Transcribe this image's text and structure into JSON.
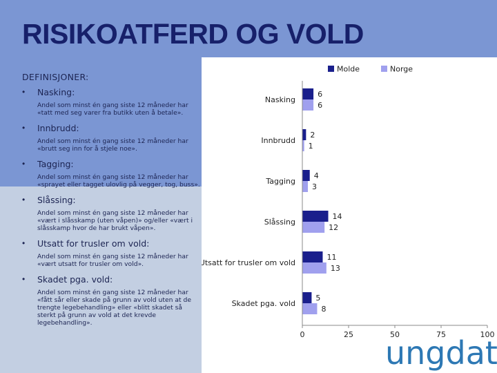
{
  "slide": {
    "title": "RISIKOATFERD OG VOLD",
    "definitions_heading": "DEFINISJONER:",
    "definitions": [
      {
        "term": "Nasking:",
        "desc": "Andel som minst én gang siste 12 måneder har «tatt med seg varer fra butikk uten å betale»."
      },
      {
        "term": "Innbrudd:",
        "desc": "Andel som minst én gang siste 12 måneder har «brutt seg inn for å stjele noe»."
      },
      {
        "term": "Tagging:",
        "desc": "Andel som minst én gang siste 12 måneder har «sprayet eller tagget ulovlig på vegger, tog, buss»."
      },
      {
        "term": "Slåssing:",
        "desc": "Andel som minst én gang siste 12 måneder har «vært i slåsskamp (uten våpen)» og/eller «vært i slåsskamp hvor de har brukt våpen»."
      },
      {
        "term": "Utsatt for trusler om vold:",
        "desc": "Andel som minst én gang siste 12 måneder har «vært utsatt for trusler om vold»."
      },
      {
        "term": "Skadet pga. vold:",
        "desc": "Andel som minst én gang siste 12 måneder har «fått sår eller skade på grunn av vold uten at de trengte legebehandling» eller «blitt skadet så sterkt på grunn av vold at det krevde legebehandling»."
      }
    ],
    "logo_text": "ungdata"
  },
  "chart_data": {
    "type": "bar",
    "orientation": "horizontal",
    "categories": [
      "Nasking",
      "Innbrudd",
      "Tagging",
      "Slåssing",
      "Utsatt for trusler om vold",
      "Skadet pga. vold"
    ],
    "series": [
      {
        "name": "Molde",
        "color": "#1a1f8c",
        "values": [
          6,
          2,
          4,
          14,
          11,
          5
        ]
      },
      {
        "name": "Norge",
        "color": "#a0a0ee",
        "values": [
          6,
          1,
          3,
          12,
          13,
          8
        ]
      }
    ],
    "x_ticks": [
      0,
      25,
      50,
      75,
      100
    ],
    "xlim": [
      0,
      100
    ],
    "legend_position": "top",
    "grid": false
  }
}
